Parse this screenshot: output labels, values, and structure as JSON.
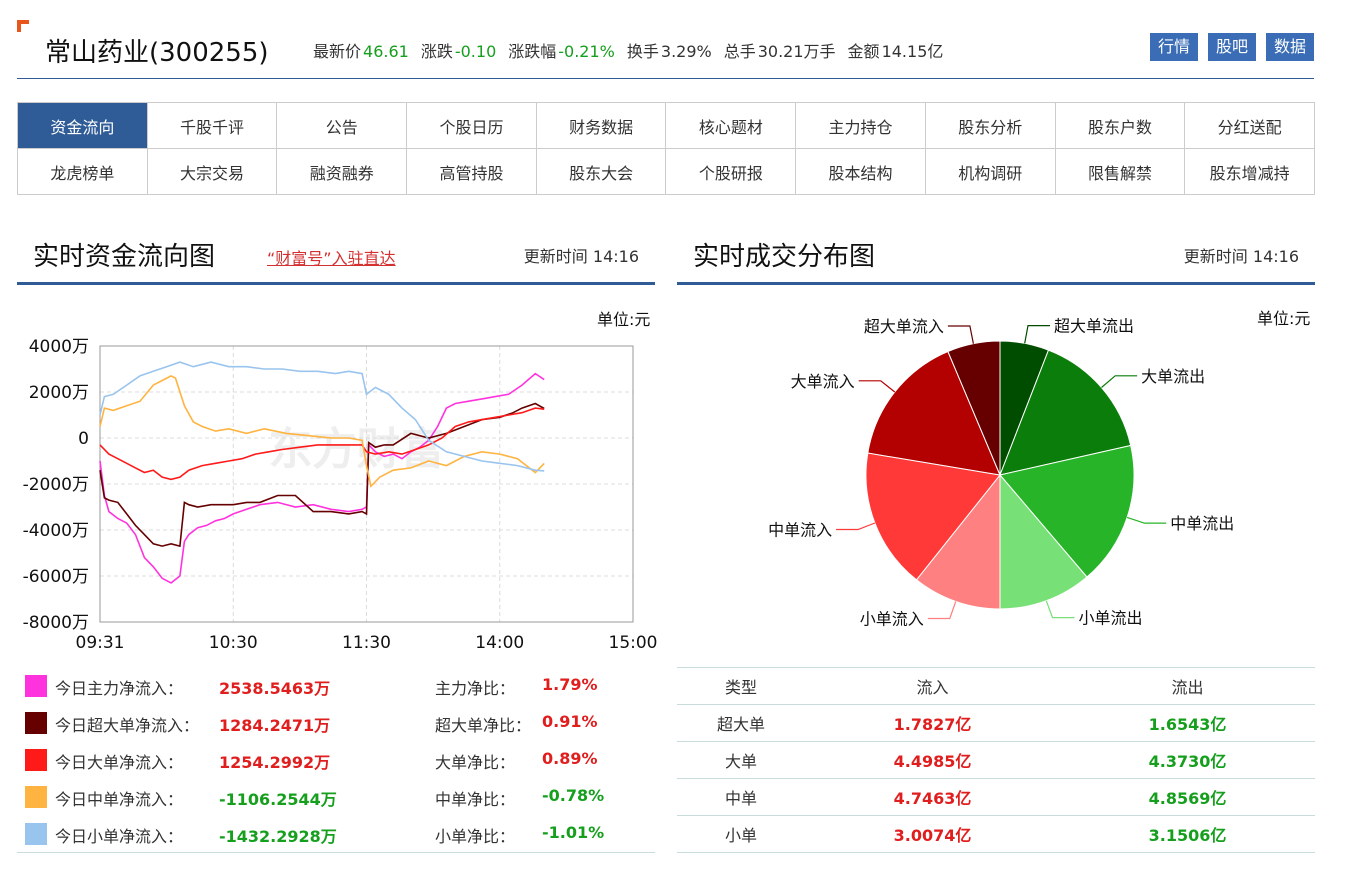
{
  "header": {
    "title": "常山药业(300255)",
    "quote": [
      {
        "label": "最新价",
        "value": "46.61",
        "color": "green"
      },
      {
        "label": "涨跌",
        "value": "-0.10",
        "color": "green"
      },
      {
        "label": "涨跌幅",
        "value": "-0.21%",
        "color": "green"
      },
      {
        "label": "换手",
        "value": "3.29%",
        "color": "plain"
      },
      {
        "label": "总手",
        "value": "30.21万手",
        "color": "plain"
      },
      {
        "label": "金额",
        "value": "14.15亿",
        "color": "plain"
      }
    ],
    "buttons": [
      "行情",
      "股吧",
      "数据"
    ]
  },
  "nav": {
    "items": [
      "资金流向",
      "千股千评",
      "公告",
      "个股日历",
      "财务数据",
      "核心题材",
      "主力持仓",
      "股东分析",
      "股东户数",
      "分红送配",
      "龙虎榜单",
      "大宗交易",
      "融资融券",
      "高管持股",
      "股东大会",
      "个股研报",
      "股本结构",
      "机构调研",
      "限售解禁",
      "股东增减持"
    ],
    "active_index": 0
  },
  "left_section": {
    "title": "实时资金流向图",
    "link": "“财富号”入驻直达",
    "update_label": "更新时间",
    "update_time": "14:16",
    "unit": "单位:元"
  },
  "right_section": {
    "title": "实时成交分布图",
    "update_label": "更新时间",
    "update_time": "14:16",
    "unit": "单位:元"
  },
  "legend": [
    {
      "label": "今日主力净流入：",
      "value": "2538.5463万",
      "ratio_label": "主力净比：",
      "ratio": "1.79%",
      "swatch": "#ff33dd",
      "value_color": "red"
    },
    {
      "label": "今日超大单净流入：",
      "value": "1284.2471万",
      "ratio_label": "超大单净比：",
      "ratio": "0.91%",
      "swatch": "#660000",
      "value_color": "red"
    },
    {
      "label": "今日大单净流入：",
      "value": "1254.2992万",
      "ratio_label": "大单净比：",
      "ratio": "0.89%",
      "swatch": "#ff1a1a",
      "value_color": "red"
    },
    {
      "label": "今日中单净流入：",
      "value": "-1106.2544万",
      "ratio_label": "中单净比：",
      "ratio": "-0.78%",
      "swatch": "#ffb340",
      "value_color": "green"
    },
    {
      "label": "今日小单净流入：",
      "value": "-1432.2928万",
      "ratio_label": "小单净比：",
      "ratio": "-1.01%",
      "swatch": "#99c4ee",
      "value_color": "green"
    }
  ],
  "dist_table": {
    "headers": [
      "类型",
      "流入",
      "流出"
    ],
    "rows": [
      [
        "超大单",
        "1.7827亿",
        "1.6543亿"
      ],
      [
        "大单",
        "4.4985亿",
        "4.3730亿"
      ],
      [
        "中单",
        "4.7463亿",
        "4.8569亿"
      ],
      [
        "小单",
        "3.0074亿",
        "3.1506亿"
      ]
    ]
  },
  "chart_data": [
    {
      "type": "line",
      "ylim": [
        -8000,
        4000
      ],
      "y_ticks": [
        "4000万",
        "2000万",
        "0",
        "-2000万",
        "-4000万",
        "-6000万",
        "-8000万"
      ],
      "y_tick_values": [
        4000,
        2000,
        0,
        -2000,
        -4000,
        -6000,
        -8000
      ],
      "x_ticks": [
        "09:31",
        "10:30",
        "11:30",
        "14:00",
        "15:00"
      ],
      "x_tick_minutes": [
        0,
        60,
        120,
        180,
        240
      ],
      "x_range_minutes": [
        0,
        240
      ],
      "grid": true,
      "watermark": "东方财富",
      "series": [
        {
          "name": "主力",
          "color": "#ff33dd",
          "x": [
            0,
            2,
            4,
            8,
            12,
            16,
            20,
            24,
            28,
            32,
            36,
            38,
            40,
            44,
            48,
            52,
            56,
            60,
            66,
            72,
            80,
            88,
            96,
            104,
            112,
            118,
            120,
            121,
            124,
            128,
            132,
            136,
            140,
            144,
            148,
            152,
            156,
            160,
            166,
            172,
            178,
            184,
            190,
            196,
            200
          ],
          "y": [
            -1000,
            -2500,
            -3200,
            -3500,
            -3700,
            -4200,
            -5200,
            -5600,
            -6100,
            -6300,
            -6000,
            -4500,
            -4200,
            -3900,
            -3800,
            -3600,
            -3500,
            -3300,
            -3100,
            -2900,
            -2800,
            -3000,
            -2900,
            -3100,
            -3200,
            -3100,
            -3000,
            -300,
            -600,
            -800,
            -700,
            -900,
            -600,
            -400,
            -100,
            500,
            1300,
            1500,
            1600,
            1700,
            1800,
            1900,
            2300,
            2800,
            2538
          ]
        },
        {
          "name": "超大单",
          "color": "#660000",
          "x": [
            0,
            2,
            4,
            8,
            12,
            16,
            20,
            24,
            28,
            32,
            36,
            38,
            40,
            44,
            50,
            56,
            60,
            66,
            72,
            80,
            88,
            96,
            104,
            112,
            118,
            120,
            121,
            124,
            128,
            132,
            140,
            148,
            156,
            164,
            172,
            180,
            186,
            190,
            196,
            200
          ],
          "y": [
            -1400,
            -2600,
            -2700,
            -2800,
            -3300,
            -3800,
            -4200,
            -4600,
            -4700,
            -4600,
            -4700,
            -2800,
            -2900,
            -3000,
            -2900,
            -2900,
            -2900,
            -2800,
            -2800,
            -2500,
            -2500,
            -3200,
            -3200,
            -3300,
            -3200,
            -3300,
            -200,
            -400,
            -300,
            -300,
            200,
            0,
            200,
            500,
            800,
            900,
            1100,
            1300,
            1500,
            1284
          ]
        },
        {
          "name": "大单",
          "color": "#ff1a1a",
          "x": [
            0,
            4,
            8,
            12,
            16,
            20,
            24,
            28,
            32,
            36,
            40,
            46,
            52,
            58,
            64,
            70,
            76,
            82,
            90,
            98,
            106,
            112,
            118,
            120,
            124,
            130,
            136,
            142,
            148,
            154,
            160,
            166,
            172,
            178,
            184,
            190,
            196,
            200
          ],
          "y": [
            -300,
            -700,
            -900,
            -1100,
            -1300,
            -1500,
            -1400,
            -1700,
            -1800,
            -1700,
            -1400,
            -1200,
            -1100,
            -1000,
            -900,
            -700,
            -600,
            -500,
            -400,
            -300,
            -300,
            -300,
            -300,
            -600,
            -700,
            -600,
            -700,
            -500,
            -300,
            0,
            500,
            700,
            800,
            900,
            1000,
            1100,
            1300,
            1254
          ]
        },
        {
          "name": "中单",
          "color": "#ffb340",
          "x": [
            0,
            2,
            6,
            12,
            18,
            24,
            28,
            32,
            34,
            38,
            42,
            46,
            52,
            58,
            66,
            74,
            84,
            94,
            104,
            112,
            118,
            120,
            122,
            126,
            132,
            140,
            148,
            156,
            164,
            172,
            180,
            188,
            196,
            200
          ],
          "y": [
            500,
            1300,
            1200,
            1400,
            1600,
            2300,
            2500,
            2700,
            2600,
            1400,
            700,
            500,
            300,
            400,
            200,
            400,
            200,
            100,
            0,
            0,
            -100,
            -1200,
            -2100,
            -1700,
            -1400,
            -1300,
            -1000,
            -1200,
            -800,
            -600,
            -700,
            -900,
            -1500,
            -1106
          ]
        },
        {
          "name": "小单",
          "color": "#99c4ee",
          "x": [
            0,
            2,
            6,
            12,
            18,
            24,
            30,
            36,
            42,
            50,
            58,
            66,
            74,
            82,
            90,
            98,
            106,
            112,
            118,
            120,
            124,
            130,
            136,
            142,
            148,
            156,
            164,
            172,
            180,
            188,
            196,
            200
          ],
          "y": [
            1000,
            1800,
            1900,
            2300,
            2700,
            2900,
            3100,
            3300,
            3100,
            3300,
            3100,
            3100,
            3000,
            3000,
            2900,
            2900,
            2800,
            2900,
            2800,
            1900,
            2200,
            1900,
            1300,
            800,
            -100,
            -600,
            -800,
            -1000,
            -1100,
            -1200,
            -1400,
            -1432
          ]
        }
      ]
    },
    {
      "type": "pie",
      "slices": [
        {
          "label": "超大单流出",
          "value": 1.6543,
          "color": "#004d00"
        },
        {
          "label": "大单流出",
          "value": 4.373,
          "color": "#0a7d0a"
        },
        {
          "label": "中单流出",
          "value": 4.8569,
          "color": "#28b428"
        },
        {
          "label": "小单流出",
          "value": 3.1506,
          "color": "#77e077"
        },
        {
          "label": "小单流入",
          "value": 3.0074,
          "color": "#ff8080"
        },
        {
          "label": "中单流入",
          "value": 4.7463,
          "color": "#ff3838"
        },
        {
          "label": "大单流入",
          "value": 4.4985,
          "color": "#b30000"
        },
        {
          "label": "超大单流入",
          "value": 1.7827,
          "color": "#660000"
        }
      ]
    }
  ]
}
